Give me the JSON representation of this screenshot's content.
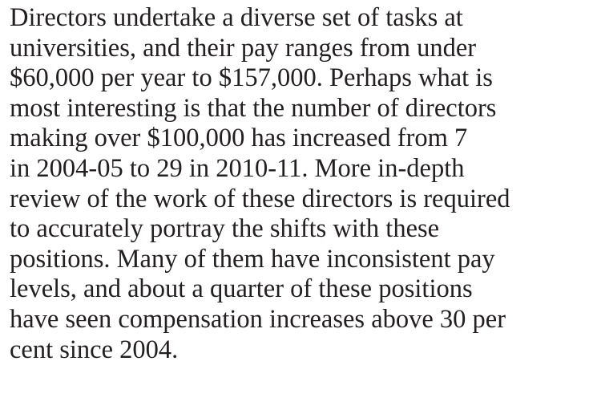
{
  "paragraph": {
    "lines": [
      "Directors undertake a diverse set of tasks at",
      "universities, and their pay ranges from under",
      "$60,000 per year to $157,000. Perhaps what is",
      "most interesting is that the number of directors",
      "making over $100,000 has increased from 7",
      "in 2004-05 to 29 in 2010-11. More in-depth",
      "review of the work of these directors is required",
      "to accurately portray the shifts with these",
      "positions. Many of them have inconsistent pay",
      "levels, and about a quarter of these positions",
      "have seen compensation increases above 30 per",
      "cent since 2004."
    ]
  }
}
